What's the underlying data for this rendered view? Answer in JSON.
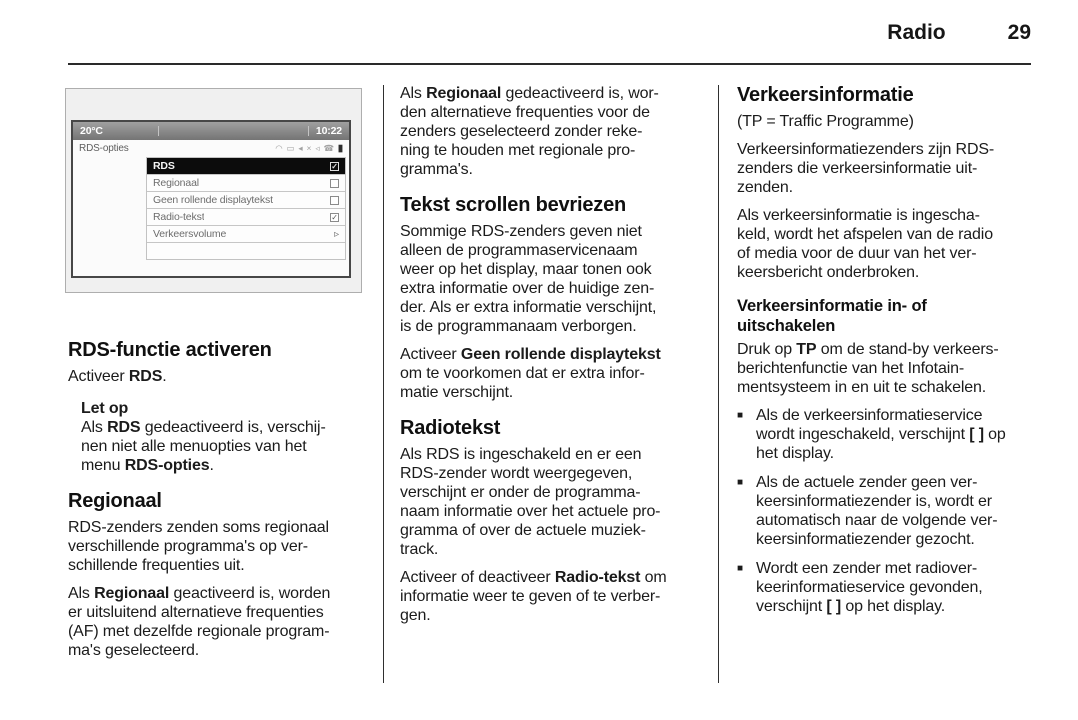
{
  "header": {
    "section_title": "Radio",
    "page_number": "29"
  },
  "infotainment_display": {
    "top_bar": {
      "temperature": "20°C",
      "time": "10:22"
    },
    "title_bar": {
      "title": "RDS-opties",
      "status_icons": [
        {
          "name": "wifi-icon",
          "glyph": "◠"
        },
        {
          "name": "signal-icon",
          "glyph": "▭"
        },
        {
          "name": "mute-icon",
          "glyph": "◂"
        },
        {
          "name": "cross-icon",
          "glyph": "×"
        },
        {
          "name": "speaker-icon",
          "glyph": "◃"
        },
        {
          "name": "phone-icon",
          "glyph": "☎"
        },
        {
          "name": "battery-icon",
          "glyph": "▮",
          "dark": true
        }
      ]
    },
    "menu_items": [
      {
        "label": "RDS",
        "control": "checkbox",
        "checked": true,
        "selected": true
      },
      {
        "label": "Regionaal",
        "control": "checkbox",
        "checked": false,
        "selected": false
      },
      {
        "label": "Geen rollende displaytekst",
        "control": "checkbox",
        "checked": false,
        "selected": false
      },
      {
        "label": "Radio-tekst",
        "control": "checkbox",
        "checked": true,
        "selected": false
      },
      {
        "label": "Verkeersvolume",
        "control": "submenu-arrow",
        "checked": false,
        "selected": false
      },
      {
        "label": "",
        "control": "none",
        "checked": false,
        "selected": false
      }
    ]
  },
  "columns": {
    "left": {
      "blocks": [
        {
          "type": "heading",
          "name": "heading-rds-functie-activeren",
          "text": "RDS-functie activeren"
        },
        {
          "type": "paragraph",
          "segments": [
            {
              "t": "Activeer "
            },
            {
              "t": "RDS",
              "b": true
            },
            {
              "t": "."
            }
          ]
        },
        {
          "type": "note",
          "name": "note-let-op",
          "title": "Let op",
          "segments": [
            {
              "t": "Als "
            },
            {
              "t": "RDS",
              "b": true
            },
            {
              "t": " gedeactiveerd is, verschij-\nnen niet alle menuopties van het\nmenu "
            },
            {
              "t": "RDS-opties",
              "b": true
            },
            {
              "t": "."
            }
          ]
        },
        {
          "type": "heading",
          "name": "heading-regionaal",
          "text": "Regionaal"
        },
        {
          "type": "paragraph",
          "segments": [
            {
              "t": "RDS-zenders zenden soms regionaal\nverschillende programma's op ver-\nschillende frequenties uit."
            }
          ]
        },
        {
          "type": "paragraph",
          "segments": [
            {
              "t": "Als "
            },
            {
              "t": "Regionaal",
              "b": true
            },
            {
              "t": " geactiveerd is, worden\ner uitsluitend alternatieve frequenties\n(AF) met dezelfde regionale program-\nma's geselecteerd."
            }
          ]
        }
      ]
    },
    "middle": {
      "blocks": [
        {
          "type": "paragraph",
          "segments": [
            {
              "t": "Als "
            },
            {
              "t": "Regionaal",
              "b": true
            },
            {
              "t": " gedeactiveerd is, wor-\nden alternatieve frequenties voor de\nzenders geselecteerd zonder reke-\nning te houden met regionale pro-\ngramma's."
            }
          ]
        },
        {
          "type": "heading",
          "name": "heading-tekst-scrollen-bevriezen",
          "text": "Tekst scrollen bevriezen"
        },
        {
          "type": "paragraph",
          "segments": [
            {
              "t": "Sommige RDS-zenders geven niet\nalleen de programmaservicenaam\nweer op het display, maar tonen ook\nextra informatie over de huidige zen-\nder. Als er extra informatie verschijnt,\nis de programmanaam verborgen."
            }
          ]
        },
        {
          "type": "paragraph",
          "segments": [
            {
              "t": "Activeer "
            },
            {
              "t": "Geen rollende displaytekst",
              "b": true
            },
            {
              "t": "\nom te voorkomen dat er extra infor-\nmatie verschijnt."
            }
          ]
        },
        {
          "type": "heading",
          "name": "heading-radiotekst",
          "text": "Radiotekst"
        },
        {
          "type": "paragraph",
          "segments": [
            {
              "t": "Als RDS is ingeschakeld en er een\nRDS-zender wordt weergegeven,\nverschijnt er onder de programma-\nnaam informatie over het actuele pro-\ngramma of over de actuele muziek-\ntrack."
            }
          ]
        },
        {
          "type": "paragraph",
          "segments": [
            {
              "t": "Activeer of deactiveer "
            },
            {
              "t": "Radio-tekst",
              "b": true
            },
            {
              "t": " om\ninformatie weer te geven of te verber-\ngen."
            }
          ]
        }
      ]
    },
    "right": {
      "blocks": [
        {
          "type": "heading",
          "name": "heading-verkeersinformatie",
          "text": "Verkeersinformatie"
        },
        {
          "type": "paragraph",
          "segments": [
            {
              "t": "(TP = Traffic Programme)"
            }
          ]
        },
        {
          "type": "paragraph",
          "segments": [
            {
              "t": "Verkeersinformatiezenders zijn RDS-\nzenders die verkeersinformatie uit-\nzenden."
            }
          ]
        },
        {
          "type": "paragraph",
          "segments": [
            {
              "t": "Als verkeersinformatie is ingescha-\nkeld, wordt het afspelen van de radio\nof media voor de duur van het ver-\nkeersbericht onderbroken."
            }
          ]
        },
        {
          "type": "subheading",
          "name": "subheading-verkeersinformatie-in-uitschakelen",
          "text": "Verkeersinformatie in- of\nuitschakelen"
        },
        {
          "type": "paragraph",
          "segments": [
            {
              "t": "Druk op "
            },
            {
              "t": "TP",
              "b": true
            },
            {
              "t": " om de stand-by verkeers-\nberichtenfunctie van het Infotain-\nmentsysteem in en uit te schakelen."
            }
          ]
        },
        {
          "type": "bullet",
          "segments": [
            {
              "t": "Als de verkeersinformatieservice\nwordt ingeschakeld, verschijnt "
            },
            {
              "t": "[ ]",
              "b": true
            },
            {
              "t": " op\nhet display."
            }
          ]
        },
        {
          "type": "bullet",
          "segments": [
            {
              "t": "Als de actuele zender geen ver-\nkeersinformatiezender is, wordt er\nautomatisch naar de volgende ver-\nkeersinformatiezender gezocht."
            }
          ]
        },
        {
          "type": "bullet",
          "segments": [
            {
              "t": "Wordt een zender met radiover-\nkeerinformatieservice gevonden,\nverschijnt "
            },
            {
              "t": "[ ]",
              "b": true
            },
            {
              "t": " op het display."
            }
          ]
        }
      ]
    }
  }
}
